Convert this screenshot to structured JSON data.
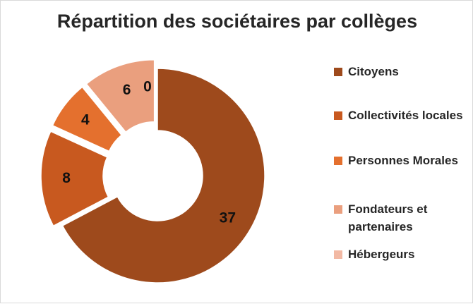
{
  "chart_data": {
    "type": "pie",
    "subtype": "doughnut-exploded",
    "title": "Répartition des sociétaires par collèges",
    "categories": [
      "Citoyens",
      "Collectivités locales",
      "Personnes Morales",
      "Fondateurs et partenaires",
      "Hébergeurs"
    ],
    "values": [
      37,
      8,
      4,
      6,
      0
    ],
    "value_labels": [
      "37",
      "8",
      "4",
      "6",
      "0"
    ],
    "colors": [
      "#9E4A1C",
      "#C8591F",
      "#E4702E",
      "#EA9F7E",
      "#F2B9A4"
    ],
    "legend_position": "right"
  }
}
